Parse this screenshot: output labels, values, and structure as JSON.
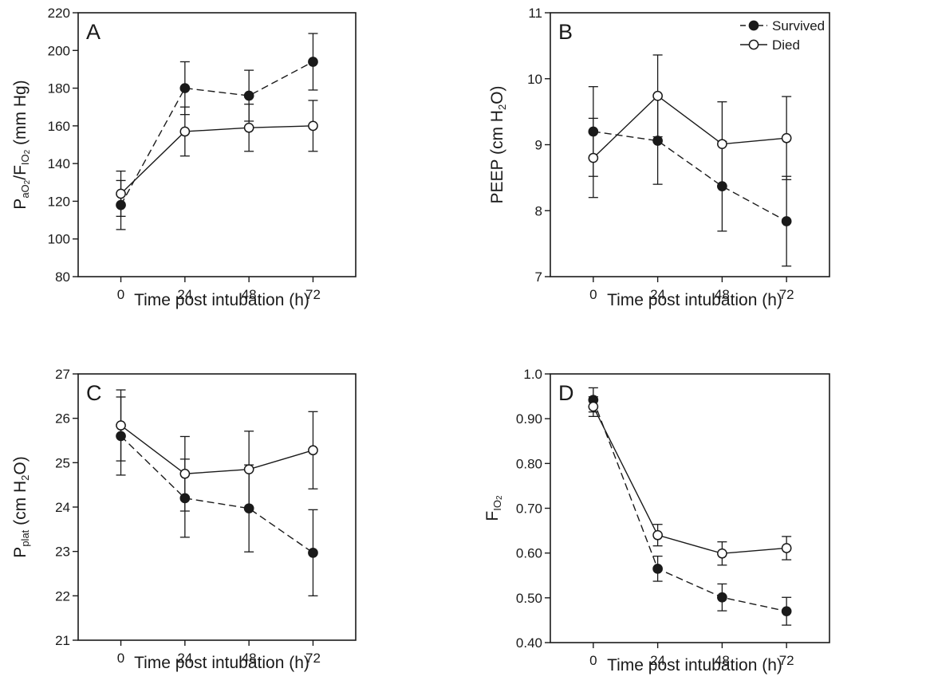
{
  "chart_data": [
    {
      "type": "line",
      "panel_label": "A",
      "x": [
        0,
        24,
        48,
        72
      ],
      "x_ticks": [
        "0",
        "24",
        "48",
        "72"
      ],
      "xlim": [
        -16,
        88
      ],
      "xlabel": "Time post intubation (h)",
      "ylabel_parts": {
        "main1": "P",
        "sub1": "aO",
        "subsub1": "2",
        "slash": "/F",
        "sub2": "IO",
        "subsub2": "2",
        "tail": " (mm Hg)"
      },
      "ylim": [
        80,
        220
      ],
      "y_ticks": [
        80,
        100,
        120,
        140,
        160,
        180,
        200,
        220
      ],
      "y_tick_labels": [
        "80",
        "100",
        "120",
        "140",
        "160",
        "180",
        "200",
        "220"
      ],
      "series": [
        {
          "name": "Survived",
          "values": [
            118,
            180,
            176,
            194
          ],
          "err": [
            13,
            14,
            13.5,
            15
          ]
        },
        {
          "name": "Died",
          "values": [
            124,
            157,
            159,
            160
          ],
          "err": [
            12,
            13,
            12.5,
            13.5
          ]
        }
      ]
    },
    {
      "type": "line",
      "panel_label": "B",
      "x": [
        0,
        24,
        48,
        72
      ],
      "x_ticks": [
        "0",
        "24",
        "48",
        "72"
      ],
      "xlim": [
        -16,
        88
      ],
      "xlabel": "Time post intubation (h)",
      "ylabel_parts": {
        "main1": "PEEP (cm H",
        "sub1": "2",
        "tail": "O)"
      },
      "ylim": [
        7,
        11
      ],
      "y_ticks": [
        7,
        8,
        9,
        10,
        11
      ],
      "y_tick_labels": [
        "7",
        "8",
        "9",
        "10",
        "11"
      ],
      "legend": {
        "placement": "top-right",
        "entries": [
          "Survived",
          "Died"
        ]
      },
      "series": [
        {
          "name": "Survived",
          "values": [
            9.2,
            9.06,
            8.37,
            7.84
          ],
          "err": [
            0.68,
            0.66,
            0.68,
            0.68
          ]
        },
        {
          "name": "Died",
          "values": [
            8.8,
            9.74,
            9.01,
            9.1
          ],
          "err": [
            0.6,
            0.62,
            0.64,
            0.63
          ]
        }
      ]
    },
    {
      "type": "line",
      "panel_label": "C",
      "x": [
        0,
        24,
        48,
        72
      ],
      "x_ticks": [
        "0",
        "24",
        "48",
        "72"
      ],
      "xlim": [
        -16,
        88
      ],
      "xlabel": "Time post intubation (h)",
      "ylabel_parts": {
        "main1": "P",
        "sub1": "plat",
        "mid": " (cm H",
        "sub2": "2",
        "tail": "O)"
      },
      "ylim": [
        21,
        27
      ],
      "y_ticks": [
        21,
        22,
        23,
        24,
        25,
        26,
        27
      ],
      "y_tick_labels": [
        "21",
        "22",
        "23",
        "24",
        "25",
        "26",
        "27"
      ],
      "series": [
        {
          "name": "Survived",
          "values": [
            25.6,
            24.2,
            23.97,
            22.97
          ],
          "err": [
            0.88,
            0.88,
            0.98,
            0.97
          ]
        },
        {
          "name": "Died",
          "values": [
            25.84,
            24.75,
            24.85,
            25.28
          ],
          "err": [
            0.8,
            0.84,
            0.86,
            0.87
          ]
        }
      ]
    },
    {
      "type": "line",
      "panel_label": "D",
      "x": [
        0,
        24,
        48,
        72
      ],
      "x_ticks": [
        "0",
        "24",
        "48",
        "72"
      ],
      "xlim": [
        -16,
        88
      ],
      "xlabel": "Time post intubation (h)",
      "ylabel_parts": {
        "main1": "F",
        "sub1": "IO",
        "subsub1": "2"
      },
      "ylim": [
        0.4,
        1.0
      ],
      "y_ticks": [
        0.4,
        0.5,
        0.6,
        0.7,
        0.8,
        0.9,
        1.0
      ],
      "y_tick_labels": [
        "0.40",
        "0.50",
        "0.60",
        "0.70",
        "0.80",
        "0.90",
        "1.0"
      ],
      "series": [
        {
          "name": "Survived",
          "values": [
            0.942,
            0.565,
            0.501,
            0.47
          ],
          "err": [
            0.027,
            0.028,
            0.03,
            0.031
          ]
        },
        {
          "name": "Died",
          "values": [
            0.927,
            0.64,
            0.599,
            0.611
          ],
          "err": [
            0.022,
            0.024,
            0.026,
            0.026
          ]
        }
      ]
    }
  ],
  "colors": {
    "axis": "#1a1a1a",
    "survived_fill": "#1a1a1a",
    "died_fill": "#ffffff",
    "background": "#ffffff"
  }
}
